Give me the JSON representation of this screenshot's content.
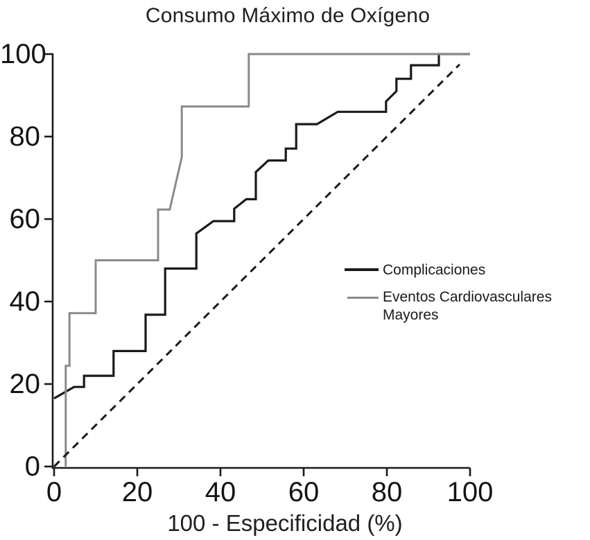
{
  "figure": {
    "title": "Consumo Máximo de Oxígeno",
    "xlabel": "100 - Especificidad (%)"
  },
  "colors": {
    "axis": "#1a1a1a",
    "complicaciones_line": "#1a1a1a",
    "eventos_line": "#8a8a8a",
    "reference_line": "#1a1a1a",
    "background": "#ffffff"
  },
  "legend": {
    "items": [
      {
        "label": "Complicaciones",
        "color": "#1a1a1a"
      },
      {
        "label": "Eventos Cardiovasculares Mayores",
        "color": "#8a8a8a"
      }
    ]
  },
  "chart_data": {
    "type": "line",
    "subtype": "roc-curve",
    "title": "Consumo Máximo de Oxígeno",
    "xlabel": "100 - Especificidad (%)",
    "ylabel": "",
    "xlim": [
      0,
      100
    ],
    "ylim": [
      0,
      100
    ],
    "xticks": [
      0,
      20,
      40,
      60,
      80,
      100
    ],
    "yticks": [
      0,
      20,
      40,
      60,
      80,
      100
    ],
    "grid": false,
    "legend_position": "center-right",
    "series": [
      {
        "name": "Complicaciones",
        "color": "#1a1a1a",
        "style": "solid",
        "width": 3.2,
        "points": [
          [
            0,
            16.5
          ],
          [
            4.8,
            19.3
          ],
          [
            7.2,
            19.3
          ],
          [
            7.2,
            22
          ],
          [
            14.3,
            22
          ],
          [
            14.3,
            28
          ],
          [
            22,
            28
          ],
          [
            22,
            36.8
          ],
          [
            26.7,
            36.8
          ],
          [
            26.7,
            48
          ],
          [
            34.2,
            48
          ],
          [
            34.2,
            56.5
          ],
          [
            38.3,
            59.5
          ],
          [
            43.3,
            59.5
          ],
          [
            43.3,
            62.5
          ],
          [
            46.2,
            64.8
          ],
          [
            48.5,
            64.8
          ],
          [
            48.5,
            71.4
          ],
          [
            51.5,
            74.2
          ],
          [
            55.7,
            74.2
          ],
          [
            55.7,
            77.1
          ],
          [
            58.2,
            77.1
          ],
          [
            58.2,
            83
          ],
          [
            63.2,
            83
          ],
          [
            68.2,
            86
          ],
          [
            79.8,
            86
          ],
          [
            79.8,
            88.5
          ],
          [
            82.3,
            91
          ],
          [
            82.3,
            94
          ],
          [
            85.8,
            94
          ],
          [
            85.8,
            97.3
          ],
          [
            92.5,
            97.3
          ],
          [
            92.5,
            100
          ],
          [
            100,
            100
          ]
        ]
      },
      {
        "name": "Eventos Cardiovasculares Mayores",
        "color": "#8a8a8a",
        "style": "solid",
        "width": 3,
        "points": [
          [
            2.8,
            0
          ],
          [
            2.8,
            24.4
          ],
          [
            3.7,
            24.4
          ],
          [
            3.7,
            37.2
          ],
          [
            10,
            37.2
          ],
          [
            10,
            50
          ],
          [
            25,
            50
          ],
          [
            25,
            62.3
          ],
          [
            27.8,
            62.3
          ],
          [
            30.7,
            75
          ],
          [
            30.7,
            87.3
          ],
          [
            46.8,
            87.3
          ],
          [
            46.8,
            100
          ],
          [
            100,
            100
          ]
        ]
      },
      {
        "name": "reference-diagonal",
        "color": "#1a1a1a",
        "style": "dashed",
        "width": 3,
        "points": [
          [
            0,
            0
          ],
          [
            97.5,
            97.5
          ]
        ]
      }
    ]
  }
}
